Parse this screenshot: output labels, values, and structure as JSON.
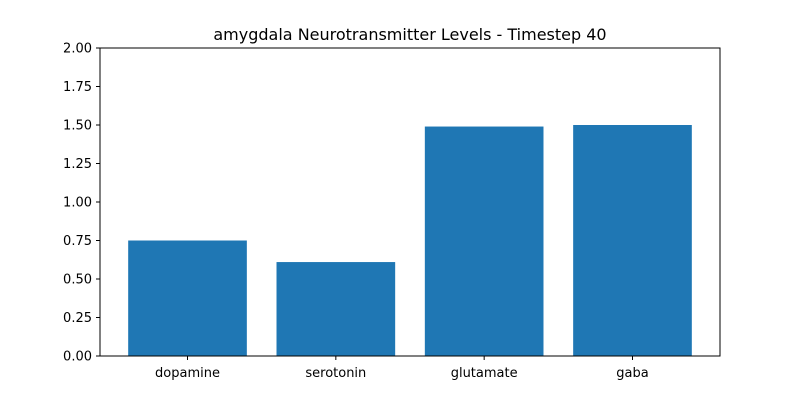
{
  "chart_data": {
    "type": "bar",
    "title": "amygdala Neurotransmitter Levels - Timestep 40",
    "xlabel": "",
    "ylabel": "",
    "categories": [
      "dopamine",
      "serotonin",
      "glutamate",
      "gaba"
    ],
    "values": [
      0.75,
      0.61,
      1.49,
      1.5
    ],
    "ylim": [
      0,
      2.0
    ],
    "yticks": [
      "0.00",
      "0.25",
      "0.50",
      "0.75",
      "1.00",
      "1.25",
      "1.50",
      "1.75",
      "2.00"
    ],
    "ytick_values": [
      0,
      0.25,
      0.5,
      0.75,
      1.0,
      1.25,
      1.5,
      1.75,
      2.0
    ],
    "grid": false,
    "legend": "none",
    "bar_color": "#1f77b4"
  }
}
